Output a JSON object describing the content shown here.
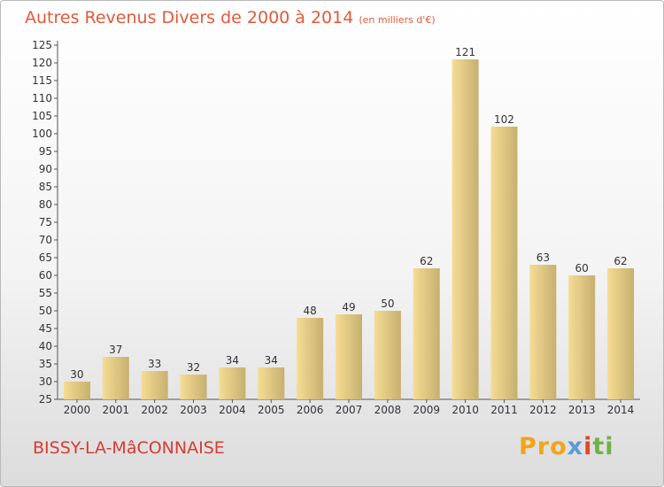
{
  "header": {
    "title": "Autres Revenus Divers de 2000 à 2014",
    "subtitle": "(en milliers d'€)"
  },
  "footer": {
    "town": "BISSY-LA-MâCONNAISE",
    "logo": [
      "Pro",
      "x",
      "i",
      "ti"
    ]
  },
  "colors": {
    "title": "#e05a3a",
    "bar_light": "#f6dc94",
    "bar_dark": "#c7b070",
    "town": "#d93b33"
  },
  "chart_data": {
    "type": "bar",
    "title": "Autres Revenus Divers de 2000 à 2014",
    "xlabel": "",
    "ylabel": "",
    "ylim": [
      25,
      125
    ],
    "yticks": [
      25,
      30,
      35,
      40,
      45,
      50,
      55,
      60,
      65,
      70,
      75,
      80,
      85,
      90,
      95,
      100,
      105,
      110,
      115,
      120,
      125
    ],
    "grid": false,
    "categories": [
      "2000",
      "2001",
      "2002",
      "2003",
      "2004",
      "2005",
      "2006",
      "2007",
      "2008",
      "2009",
      "2010",
      "2011",
      "2012",
      "2013",
      "2014"
    ],
    "values": [
      30,
      37,
      33,
      32,
      34,
      34,
      48,
      49,
      50,
      62,
      121,
      102,
      63,
      60,
      62
    ]
  }
}
